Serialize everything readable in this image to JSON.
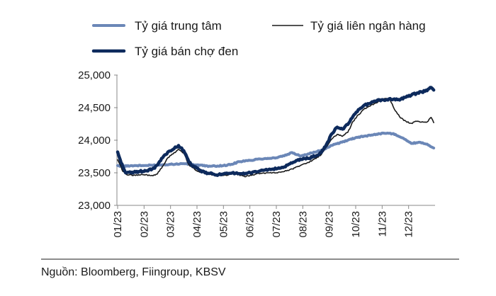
{
  "chart_data": {
    "type": "line",
    "title": "",
    "xlabel": "",
    "ylabel": "",
    "ylim": [
      23000,
      25000
    ],
    "yticks": [
      "23,000",
      "23,500",
      "24,000",
      "24,500",
      "25,000"
    ],
    "ytick_values": [
      23000,
      23500,
      24000,
      24500,
      25000
    ],
    "xticks": [
      "01/23",
      "02/23",
      "03/23",
      "04/23",
      "05/23",
      "06/23",
      "07/23",
      "08/23",
      "09/23",
      "10/23",
      "11/23",
      "12/23"
    ],
    "xlim": [
      0,
      12
    ],
    "legend_position": "top",
    "series": [
      {
        "name": "Tỷ giá trung  tâm",
        "color": "#6b87b7",
        "x": [
          0.0,
          0.2,
          0.5,
          1.0,
          1.5,
          2.0,
          2.5,
          3.0,
          3.5,
          4.0,
          4.3,
          4.6,
          5.0,
          5.3,
          5.6,
          6.0,
          6.3,
          6.6,
          6.9,
          7.2,
          7.5,
          7.8,
          8.1,
          8.4,
          8.7,
          9.0,
          9.3,
          9.6,
          9.9,
          10.2,
          10.5,
          10.8,
          11.1,
          11.4,
          11.7,
          11.95
        ],
        "values": [
          23610,
          23600,
          23610,
          23610,
          23620,
          23630,
          23640,
          23620,
          23600,
          23610,
          23630,
          23670,
          23690,
          23710,
          23720,
          23730,
          23760,
          23810,
          23760,
          23790,
          23820,
          23860,
          23920,
          23960,
          24000,
          24040,
          24060,
          24080,
          24100,
          24110,
          24090,
          24030,
          23950,
          23970,
          23940,
          23880
        ]
      },
      {
        "name": "Tỷ giá liên ngân hàng",
        "color": "#1a1a1a",
        "x": [
          0.0,
          0.1,
          0.2,
          0.35,
          0.6,
          1.0,
          1.3,
          1.5,
          1.7,
          1.9,
          2.1,
          2.3,
          2.5,
          2.7,
          2.9,
          3.1,
          3.3,
          3.6,
          3.9,
          4.2,
          4.5,
          4.8,
          5.1,
          5.4,
          5.7,
          6.0,
          6.3,
          6.6,
          6.9,
          7.2,
          7.5,
          7.7,
          7.9,
          8.1,
          8.3,
          8.5,
          8.7,
          8.9,
          9.1,
          9.3,
          9.5,
          9.7,
          9.9,
          10.1,
          10.3,
          10.5,
          10.7,
          10.9,
          11.1,
          11.3,
          11.5,
          11.7,
          11.85,
          11.95
        ],
        "values": [
          23700,
          23620,
          23520,
          23470,
          23460,
          23470,
          23460,
          23480,
          23600,
          23730,
          23790,
          23860,
          23800,
          23620,
          23560,
          23510,
          23500,
          23470,
          23460,
          23470,
          23480,
          23440,
          23470,
          23490,
          23500,
          23500,
          23520,
          23560,
          23610,
          23660,
          23720,
          23780,
          23900,
          24020,
          24090,
          24060,
          24120,
          24290,
          24390,
          24470,
          24520,
          24560,
          24600,
          24640,
          24620,
          24450,
          24340,
          24290,
          24260,
          24290,
          24280,
          24280,
          24350,
          24270
        ]
      },
      {
        "name": "Tỷ giá bán chợ đen",
        "color": "#0d2a5c",
        "x": [
          0.0,
          0.1,
          0.2,
          0.3,
          0.5,
          0.8,
          1.1,
          1.4,
          1.7,
          1.9,
          2.1,
          2.3,
          2.5,
          2.7,
          2.9,
          3.1,
          3.3,
          3.6,
          3.9,
          4.2,
          4.5,
          4.8,
          5.1,
          5.4,
          5.7,
          6.0,
          6.3,
          6.6,
          6.9,
          7.2,
          7.5,
          7.7,
          7.9,
          8.1,
          8.3,
          8.5,
          8.7,
          8.9,
          9.1,
          9.3,
          9.5,
          9.7,
          9.9,
          10.1,
          10.3,
          10.5,
          10.7,
          10.9,
          11.1,
          11.3,
          11.5,
          11.7,
          11.85,
          11.95
        ],
        "values": [
          23820,
          23700,
          23590,
          23500,
          23500,
          23520,
          23530,
          23570,
          23730,
          23820,
          23860,
          23920,
          23840,
          23660,
          23590,
          23540,
          23500,
          23480,
          23470,
          23490,
          23500,
          23480,
          23510,
          23530,
          23550,
          23560,
          23590,
          23650,
          23710,
          23720,
          23760,
          23810,
          23940,
          24100,
          24200,
          24170,
          24240,
          24370,
          24470,
          24530,
          24560,
          24600,
          24620,
          24610,
          24640,
          24620,
          24630,
          24660,
          24690,
          24720,
          24740,
          24760,
          24810,
          24770
        ]
      }
    ]
  },
  "source": {
    "text": "Nguồn:  Bloomberg, Fiingroup, KBSV"
  }
}
